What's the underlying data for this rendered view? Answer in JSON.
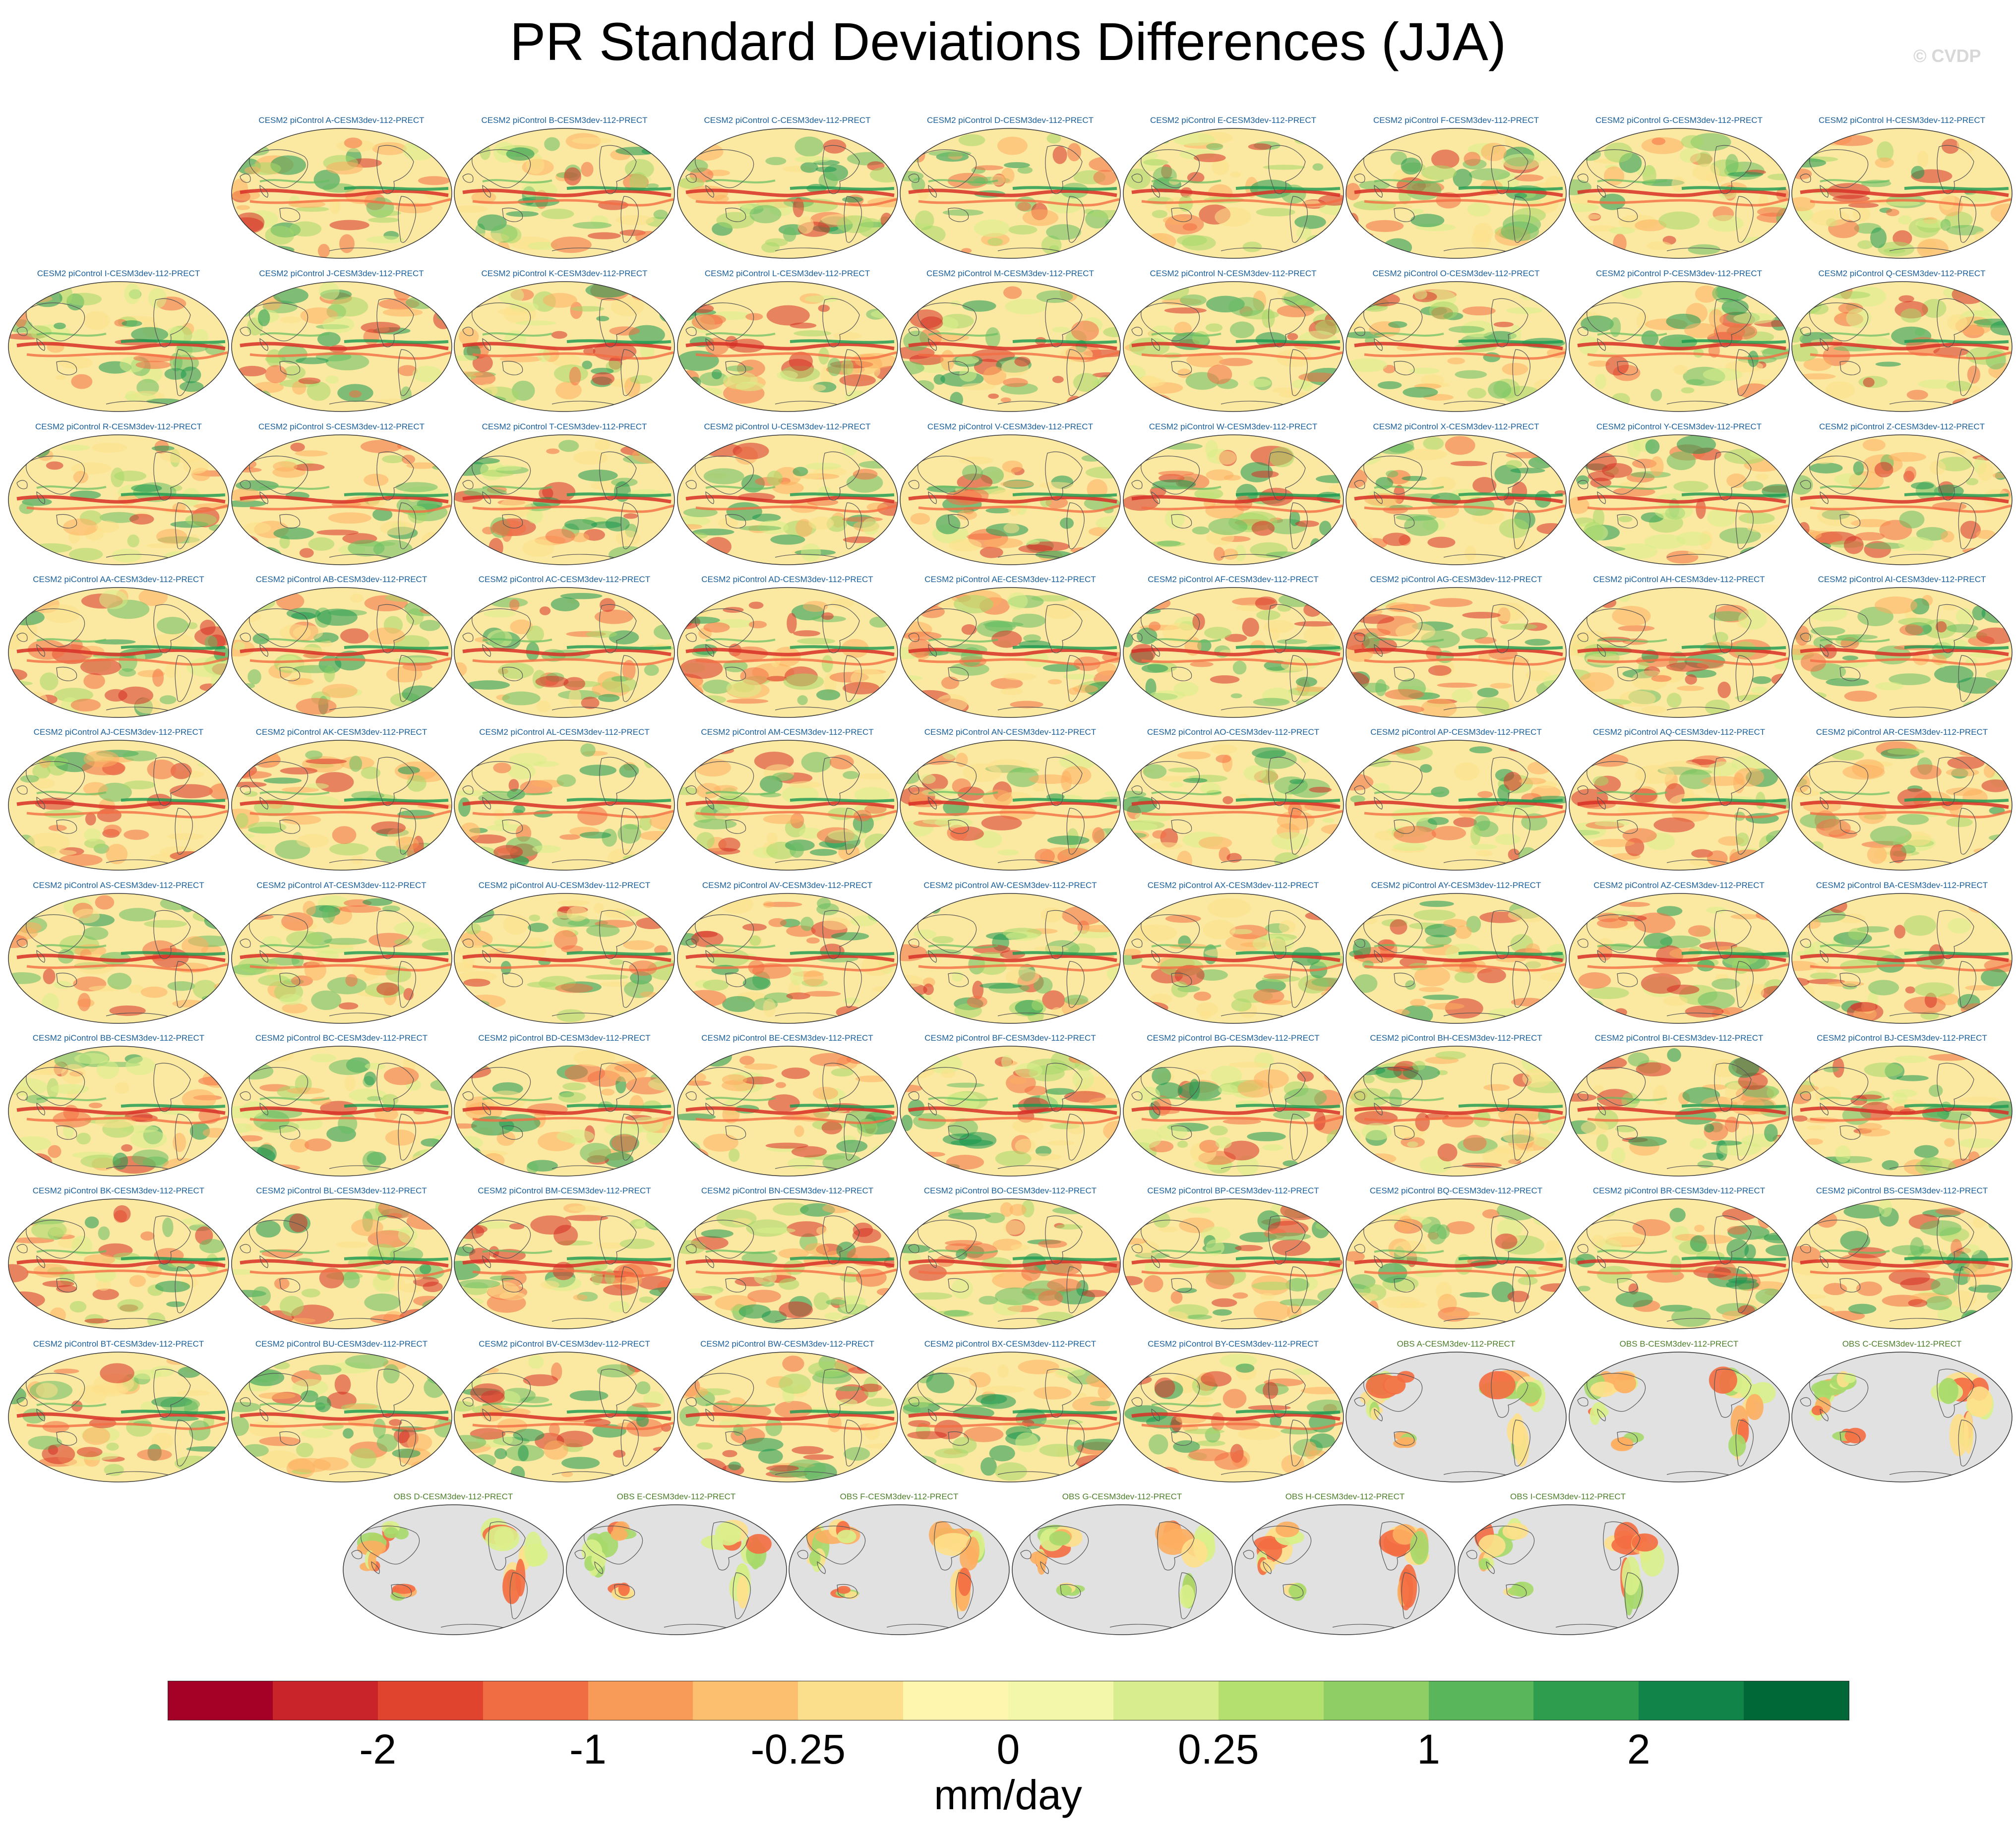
{
  "title": "PR Standard Deviations Differences (JJA)",
  "credit": "© CVDP",
  "panels": [
    {
      "label": "CESM2 piControl A-CESM3dev-112-PRECT",
      "kind": "model"
    },
    {
      "label": "CESM2 piControl B-CESM3dev-112-PRECT",
      "kind": "model"
    },
    {
      "label": "CESM2 piControl C-CESM3dev-112-PRECT",
      "kind": "model"
    },
    {
      "label": "CESM2 piControl D-CESM3dev-112-PRECT",
      "kind": "model"
    },
    {
      "label": "CESM2 piControl E-CESM3dev-112-PRECT",
      "kind": "model"
    },
    {
      "label": "CESM2 piControl F-CESM3dev-112-PRECT",
      "kind": "model"
    },
    {
      "label": "CESM2 piControl G-CESM3dev-112-PRECT",
      "kind": "model"
    },
    {
      "label": "CESM2 piControl H-CESM3dev-112-PRECT",
      "kind": "model"
    },
    {
      "label": "CESM2 piControl I-CESM3dev-112-PRECT",
      "kind": "model"
    },
    {
      "label": "CESM2 piControl J-CESM3dev-112-PRECT",
      "kind": "model"
    },
    {
      "label": "CESM2 piControl K-CESM3dev-112-PRECT",
      "kind": "model"
    },
    {
      "label": "CESM2 piControl L-CESM3dev-112-PRECT",
      "kind": "model"
    },
    {
      "label": "CESM2 piControl M-CESM3dev-112-PRECT",
      "kind": "model"
    },
    {
      "label": "CESM2 piControl N-CESM3dev-112-PRECT",
      "kind": "model"
    },
    {
      "label": "CESM2 piControl O-CESM3dev-112-PRECT",
      "kind": "model"
    },
    {
      "label": "CESM2 piControl P-CESM3dev-112-PRECT",
      "kind": "model"
    },
    {
      "label": "CESM2 piControl Q-CESM3dev-112-PRECT",
      "kind": "model"
    },
    {
      "label": "CESM2 piControl R-CESM3dev-112-PRECT",
      "kind": "model"
    },
    {
      "label": "CESM2 piControl S-CESM3dev-112-PRECT",
      "kind": "model"
    },
    {
      "label": "CESM2 piControl T-CESM3dev-112-PRECT",
      "kind": "model"
    },
    {
      "label": "CESM2 piControl U-CESM3dev-112-PRECT",
      "kind": "model"
    },
    {
      "label": "CESM2 piControl V-CESM3dev-112-PRECT",
      "kind": "model"
    },
    {
      "label": "CESM2 piControl W-CESM3dev-112-PRECT",
      "kind": "model"
    },
    {
      "label": "CESM2 piControl X-CESM3dev-112-PRECT",
      "kind": "model"
    },
    {
      "label": "CESM2 piControl Y-CESM3dev-112-PRECT",
      "kind": "model"
    },
    {
      "label": "CESM2 piControl Z-CESM3dev-112-PRECT",
      "kind": "model"
    },
    {
      "label": "CESM2 piControl AA-CESM3dev-112-PRECT",
      "kind": "model"
    },
    {
      "label": "CESM2 piControl AB-CESM3dev-112-PRECT",
      "kind": "model"
    },
    {
      "label": "CESM2 piControl AC-CESM3dev-112-PRECT",
      "kind": "model"
    },
    {
      "label": "CESM2 piControl AD-CESM3dev-112-PRECT",
      "kind": "model"
    },
    {
      "label": "CESM2 piControl AE-CESM3dev-112-PRECT",
      "kind": "model"
    },
    {
      "label": "CESM2 piControl AF-CESM3dev-112-PRECT",
      "kind": "model"
    },
    {
      "label": "CESM2 piControl AG-CESM3dev-112-PRECT",
      "kind": "model"
    },
    {
      "label": "CESM2 piControl AH-CESM3dev-112-PRECT",
      "kind": "model"
    },
    {
      "label": "CESM2 piControl AI-CESM3dev-112-PRECT",
      "kind": "model"
    },
    {
      "label": "CESM2 piControl AJ-CESM3dev-112-PRECT",
      "kind": "model"
    },
    {
      "label": "CESM2 piControl AK-CESM3dev-112-PRECT",
      "kind": "model"
    },
    {
      "label": "CESM2 piControl AL-CESM3dev-112-PRECT",
      "kind": "model"
    },
    {
      "label": "CESM2 piControl AM-CESM3dev-112-PRECT",
      "kind": "model"
    },
    {
      "label": "CESM2 piControl AN-CESM3dev-112-PRECT",
      "kind": "model"
    },
    {
      "label": "CESM2 piControl AO-CESM3dev-112-PRECT",
      "kind": "model"
    },
    {
      "label": "CESM2 piControl AP-CESM3dev-112-PRECT",
      "kind": "model"
    },
    {
      "label": "CESM2 piControl AQ-CESM3dev-112-PRECT",
      "kind": "model"
    },
    {
      "label": "CESM2 piControl AR-CESM3dev-112-PRECT",
      "kind": "model"
    },
    {
      "label": "CESM2 piControl AS-CESM3dev-112-PRECT",
      "kind": "model"
    },
    {
      "label": "CESM2 piControl AT-CESM3dev-112-PRECT",
      "kind": "model"
    },
    {
      "label": "CESM2 piControl AU-CESM3dev-112-PRECT",
      "kind": "model"
    },
    {
      "label": "CESM2 piControl AV-CESM3dev-112-PRECT",
      "kind": "model"
    },
    {
      "label": "CESM2 piControl AW-CESM3dev-112-PRECT",
      "kind": "model"
    },
    {
      "label": "CESM2 piControl AX-CESM3dev-112-PRECT",
      "kind": "model"
    },
    {
      "label": "CESM2 piControl AY-CESM3dev-112-PRECT",
      "kind": "model"
    },
    {
      "label": "CESM2 piControl AZ-CESM3dev-112-PRECT",
      "kind": "model"
    },
    {
      "label": "CESM2 piControl BA-CESM3dev-112-PRECT",
      "kind": "model"
    },
    {
      "label": "CESM2 piControl BB-CESM3dev-112-PRECT",
      "kind": "model"
    },
    {
      "label": "CESM2 piControl BC-CESM3dev-112-PRECT",
      "kind": "model"
    },
    {
      "label": "CESM2 piControl BD-CESM3dev-112-PRECT",
      "kind": "model"
    },
    {
      "label": "CESM2 piControl BE-CESM3dev-112-PRECT",
      "kind": "model"
    },
    {
      "label": "CESM2 piControl BF-CESM3dev-112-PRECT",
      "kind": "model"
    },
    {
      "label": "CESM2 piControl BG-CESM3dev-112-PRECT",
      "kind": "model"
    },
    {
      "label": "CESM2 piControl BH-CESM3dev-112-PRECT",
      "kind": "model"
    },
    {
      "label": "CESM2 piControl BI-CESM3dev-112-PRECT",
      "kind": "model"
    },
    {
      "label": "CESM2 piControl BJ-CESM3dev-112-PRECT",
      "kind": "model"
    },
    {
      "label": "CESM2 piControl BK-CESM3dev-112-PRECT",
      "kind": "model"
    },
    {
      "label": "CESM2 piControl BL-CESM3dev-112-PRECT",
      "kind": "model"
    },
    {
      "label": "CESM2 piControl BM-CESM3dev-112-PRECT",
      "kind": "model"
    },
    {
      "label": "CESM2 piControl BN-CESM3dev-112-PRECT",
      "kind": "model"
    },
    {
      "label": "CESM2 piControl BO-CESM3dev-112-PRECT",
      "kind": "model"
    },
    {
      "label": "CESM2 piControl BP-CESM3dev-112-PRECT",
      "kind": "model"
    },
    {
      "label": "CESM2 piControl BQ-CESM3dev-112-PRECT",
      "kind": "model"
    },
    {
      "label": "CESM2 piControl BR-CESM3dev-112-PRECT",
      "kind": "model"
    },
    {
      "label": "CESM2 piControl BS-CESM3dev-112-PRECT",
      "kind": "model"
    },
    {
      "label": "CESM2 piControl BT-CESM3dev-112-PRECT",
      "kind": "model"
    },
    {
      "label": "CESM2 piControl BU-CESM3dev-112-PRECT",
      "kind": "model"
    },
    {
      "label": "CESM2 piControl BV-CESM3dev-112-PRECT",
      "kind": "model"
    },
    {
      "label": "CESM2 piControl BW-CESM3dev-112-PRECT",
      "kind": "model"
    },
    {
      "label": "CESM2 piControl BX-CESM3dev-112-PRECT",
      "kind": "model"
    },
    {
      "label": "CESM2 piControl BY-CESM3dev-112-PRECT",
      "kind": "model"
    },
    {
      "label": "OBS A-CESM3dev-112-PRECT",
      "kind": "obs"
    },
    {
      "label": "OBS B-CESM3dev-112-PRECT",
      "kind": "obs"
    },
    {
      "label": "OBS C-CESM3dev-112-PRECT",
      "kind": "obs"
    },
    {
      "label": "OBS D-CESM3dev-112-PRECT",
      "kind": "obs"
    },
    {
      "label": "OBS E-CESM3dev-112-PRECT",
      "kind": "obs"
    },
    {
      "label": "OBS F-CESM3dev-112-PRECT",
      "kind": "obs"
    },
    {
      "label": "OBS G-CESM3dev-112-PRECT",
      "kind": "obs"
    },
    {
      "label": "OBS H-CESM3dev-112-PRECT",
      "kind": "obs"
    },
    {
      "label": "OBS I-CESM3dev-112-PRECT",
      "kind": "obs"
    }
  ],
  "colorbar": {
    "colors": [
      "#a50026",
      "#c8242a",
      "#e0442e",
      "#f06d44",
      "#f89a58",
      "#fbbf6f",
      "#fbdf8d",
      "#fef6ae",
      "#f2f7aa",
      "#d8ee8e",
      "#b4e070",
      "#8fcd65",
      "#5ab65a",
      "#2e9d4e",
      "#11844a",
      "#006837"
    ],
    "ticks": [
      {
        "label": "-2",
        "boundary": 2
      },
      {
        "label": "-1",
        "boundary": 4
      },
      {
        "label": "-0.25",
        "boundary": 6
      },
      {
        "label": "0",
        "boundary": 8
      },
      {
        "label": "0.25",
        "boundary": 10
      },
      {
        "label": "1",
        "boundary": 12
      },
      {
        "label": "2",
        "boundary": 14
      }
    ],
    "units": "mm/day"
  },
  "style": {
    "ocean_model": "#fbe9a2",
    "ocean_obs": "#e1e1e1",
    "coast": "#555555"
  }
}
